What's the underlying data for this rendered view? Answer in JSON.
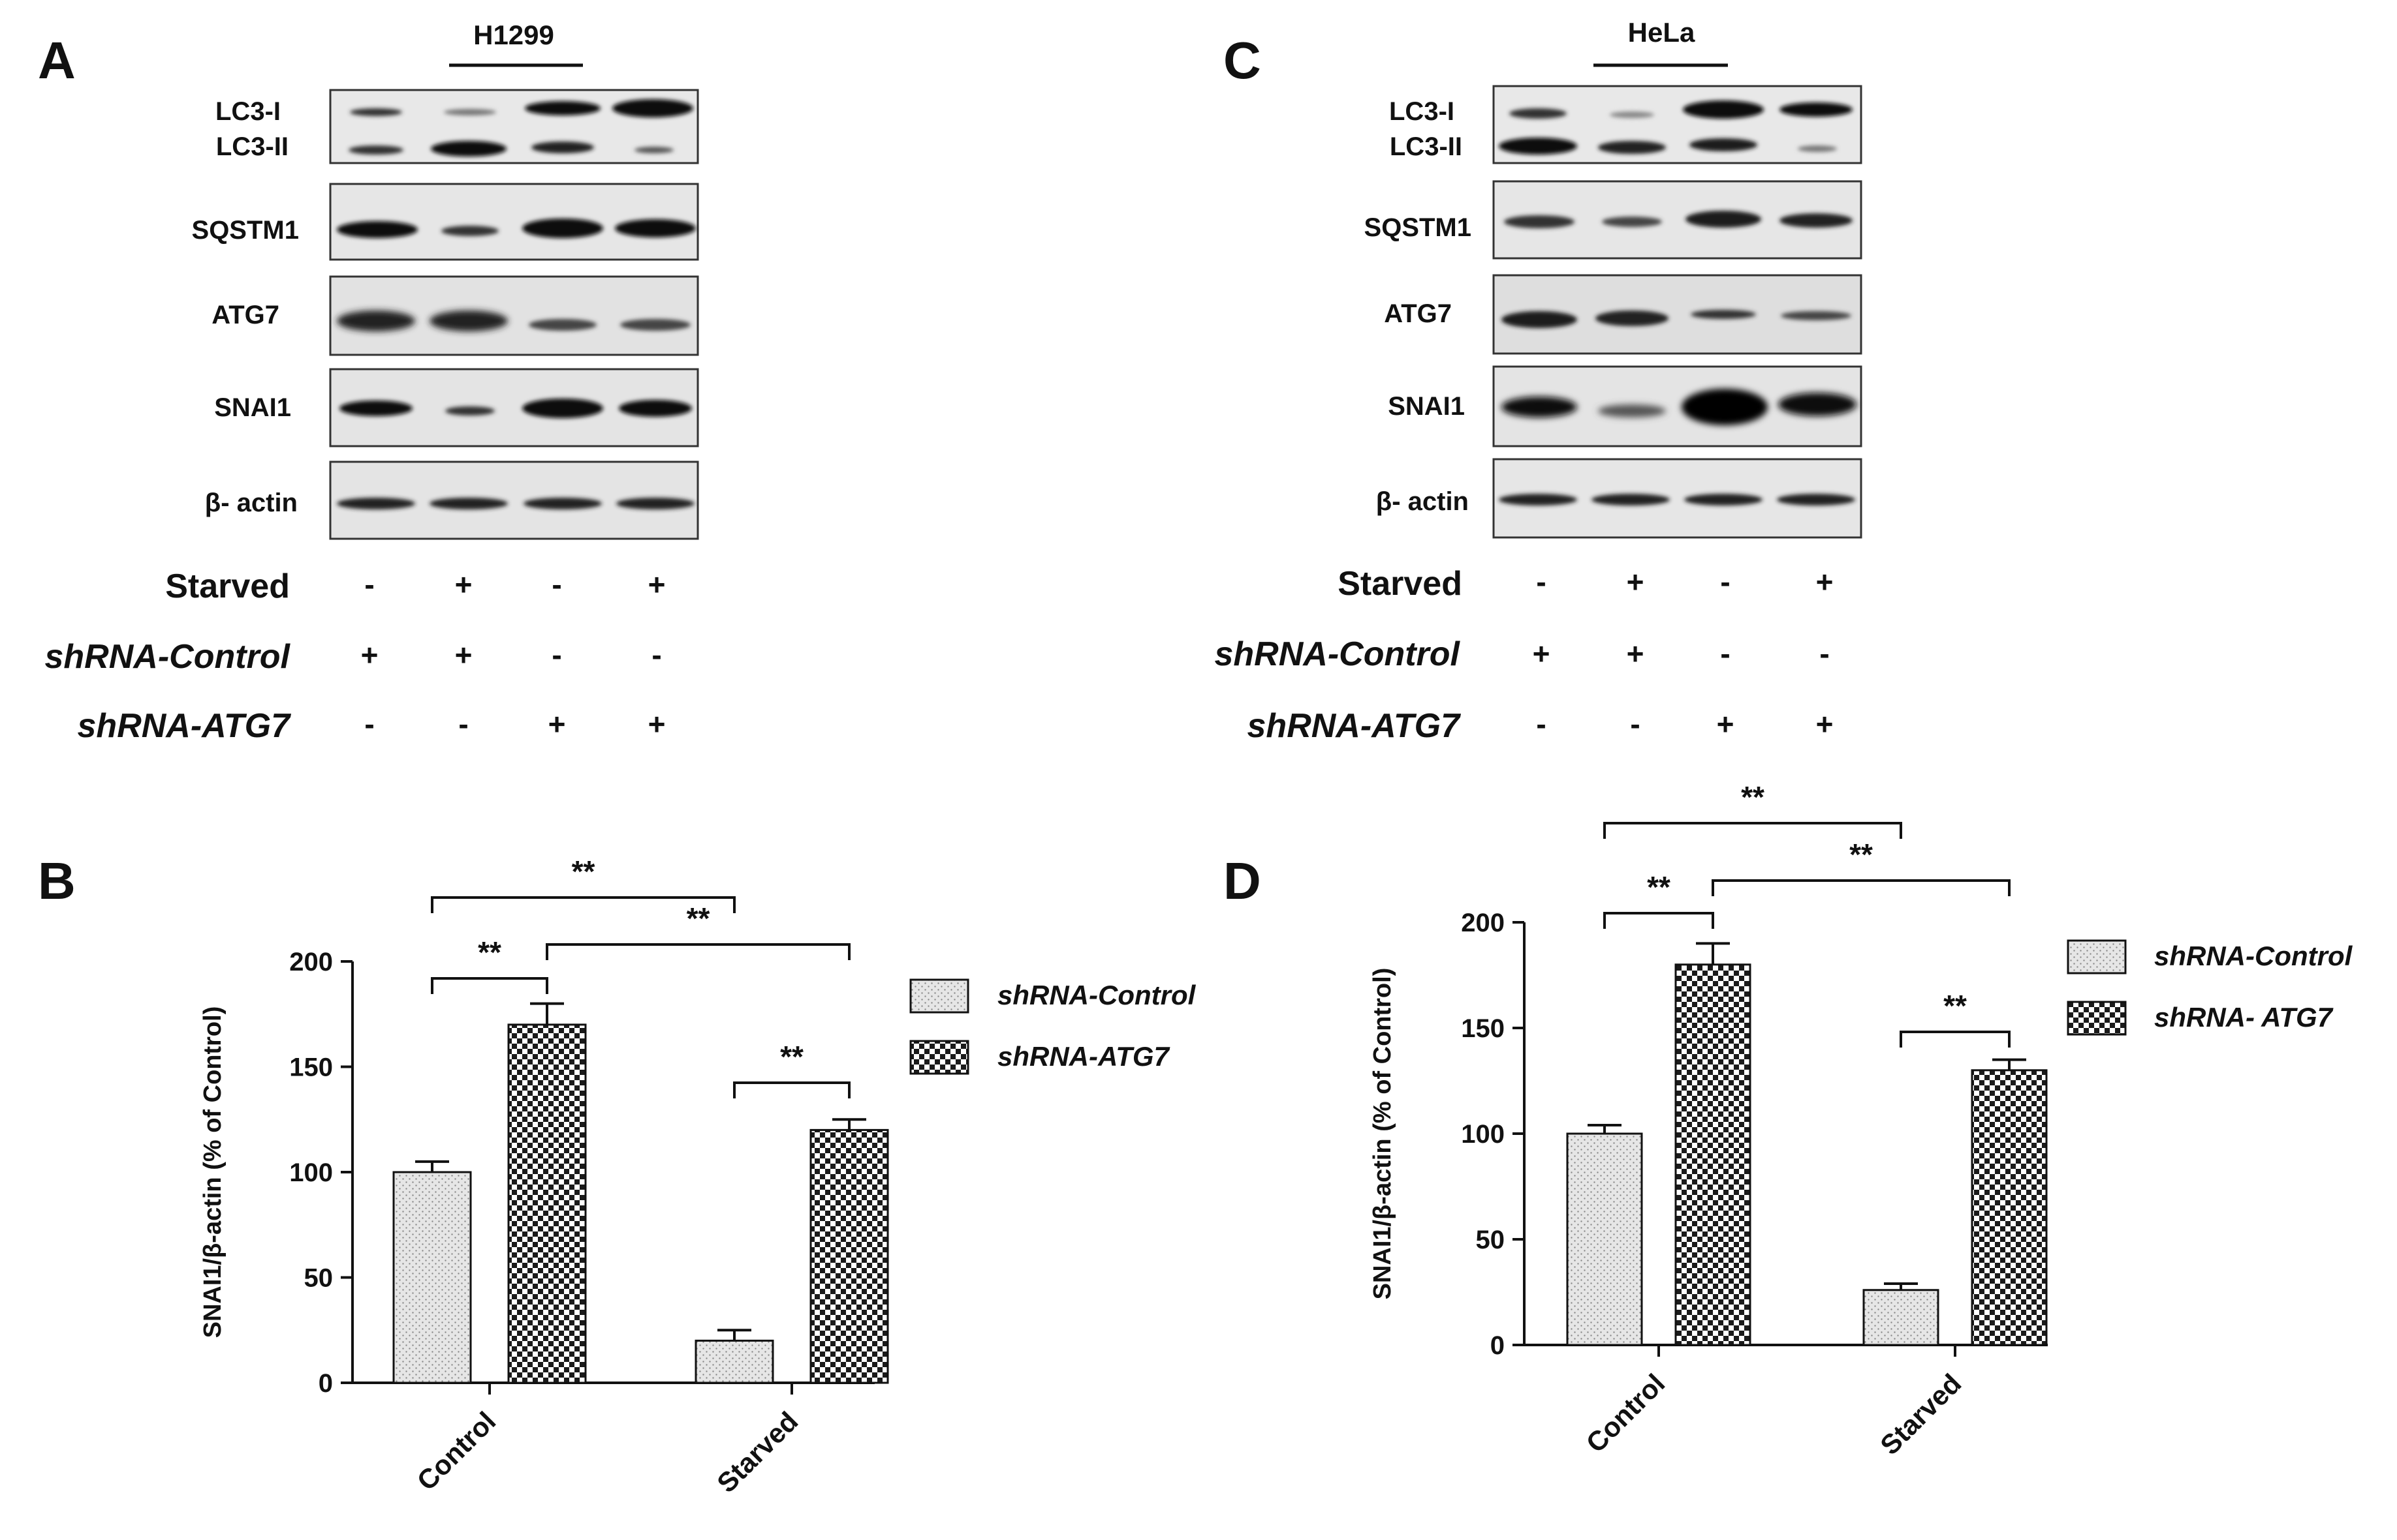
{
  "blots": {
    "A": {
      "letter": "A",
      "cell_line": "H1299",
      "bands": [
        "LC3-I",
        "LC3-II",
        "SQSTM1",
        "ATG7",
        "SNAI1",
        "β- actin"
      ],
      "conditions": [
        {
          "label": "Starved",
          "italic": false,
          "signs": [
            "-",
            "+",
            "-",
            "+"
          ]
        },
        {
          "label": "shRNA-Control",
          "italic": true,
          "signs": [
            "+",
            "+",
            "-",
            "-"
          ]
        },
        {
          "label": "shRNA-ATG7",
          "italic": true,
          "signs": [
            "-",
            "-",
            "+",
            "+"
          ]
        }
      ]
    },
    "C": {
      "letter": "C",
      "cell_line": "HeLa",
      "bands": [
        "LC3-I",
        "LC3-II",
        "SQSTM1",
        "ATG7",
        "SNAI1",
        "β- actin"
      ],
      "conditions": [
        {
          "label": "Starved",
          "italic": false,
          "signs": [
            "-",
            "+",
            "-",
            "+"
          ]
        },
        {
          "label": "shRNA-Control",
          "italic": true,
          "signs": [
            "+",
            "+",
            "-",
            "-"
          ]
        },
        {
          "label": "shRNA-ATG7",
          "italic": true,
          "signs": [
            "-",
            "-",
            "+",
            "+"
          ]
        }
      ]
    }
  },
  "chart_data": [
    {
      "panel": "B",
      "type": "bar",
      "categories": [
        "Control",
        "Starved"
      ],
      "series": [
        {
          "name": "shRNA-Control",
          "values": [
            100,
            20
          ],
          "errors": [
            5,
            5
          ],
          "pattern": "dots"
        },
        {
          "name": "shRNA-ATG7",
          "values": [
            170,
            120
          ],
          "errors": [
            10,
            5
          ],
          "pattern": "checker"
        }
      ],
      "ylabel": "SNAI1/β-actin (% of Control)",
      "ylim": [
        0,
        200
      ],
      "yticks": [
        0,
        50,
        100,
        150,
        200
      ],
      "grid": false,
      "legend": "right",
      "significance": [
        {
          "from": [
            0,
            0
          ],
          "to": [
            0,
            1
          ],
          "label": "**"
        },
        {
          "from": [
            0,
            0
          ],
          "to": [
            1,
            0
          ],
          "label": "**"
        },
        {
          "from": [
            0,
            1
          ],
          "to": [
            1,
            1
          ],
          "label": "**"
        },
        {
          "from": [
            1,
            0
          ],
          "to": [
            1,
            1
          ],
          "label": "**"
        }
      ]
    },
    {
      "panel": "D",
      "type": "bar",
      "categories": [
        "Control",
        "Starved"
      ],
      "series": [
        {
          "name": "shRNA-Control",
          "values": [
            100,
            26
          ],
          "errors": [
            4,
            3
          ],
          "pattern": "dots"
        },
        {
          "name": "shRNA- ATG7",
          "values": [
            180,
            130
          ],
          "errors": [
            10,
            5
          ],
          "pattern": "checker"
        }
      ],
      "ylabel": "SNAI1/β-actin (% of Control)",
      "ylim": [
        0,
        200
      ],
      "yticks": [
        0,
        50,
        100,
        150,
        200
      ],
      "grid": false,
      "legend": "right",
      "significance": [
        {
          "from": [
            0,
            0
          ],
          "to": [
            0,
            1
          ],
          "label": "**"
        },
        {
          "from": [
            0,
            0
          ],
          "to": [
            1,
            0
          ],
          "label": "**"
        },
        {
          "from": [
            0,
            1
          ],
          "to": [
            1,
            1
          ],
          "label": "**"
        },
        {
          "from": [
            1,
            0
          ],
          "to": [
            1,
            1
          ],
          "label": "**"
        }
      ]
    }
  ]
}
